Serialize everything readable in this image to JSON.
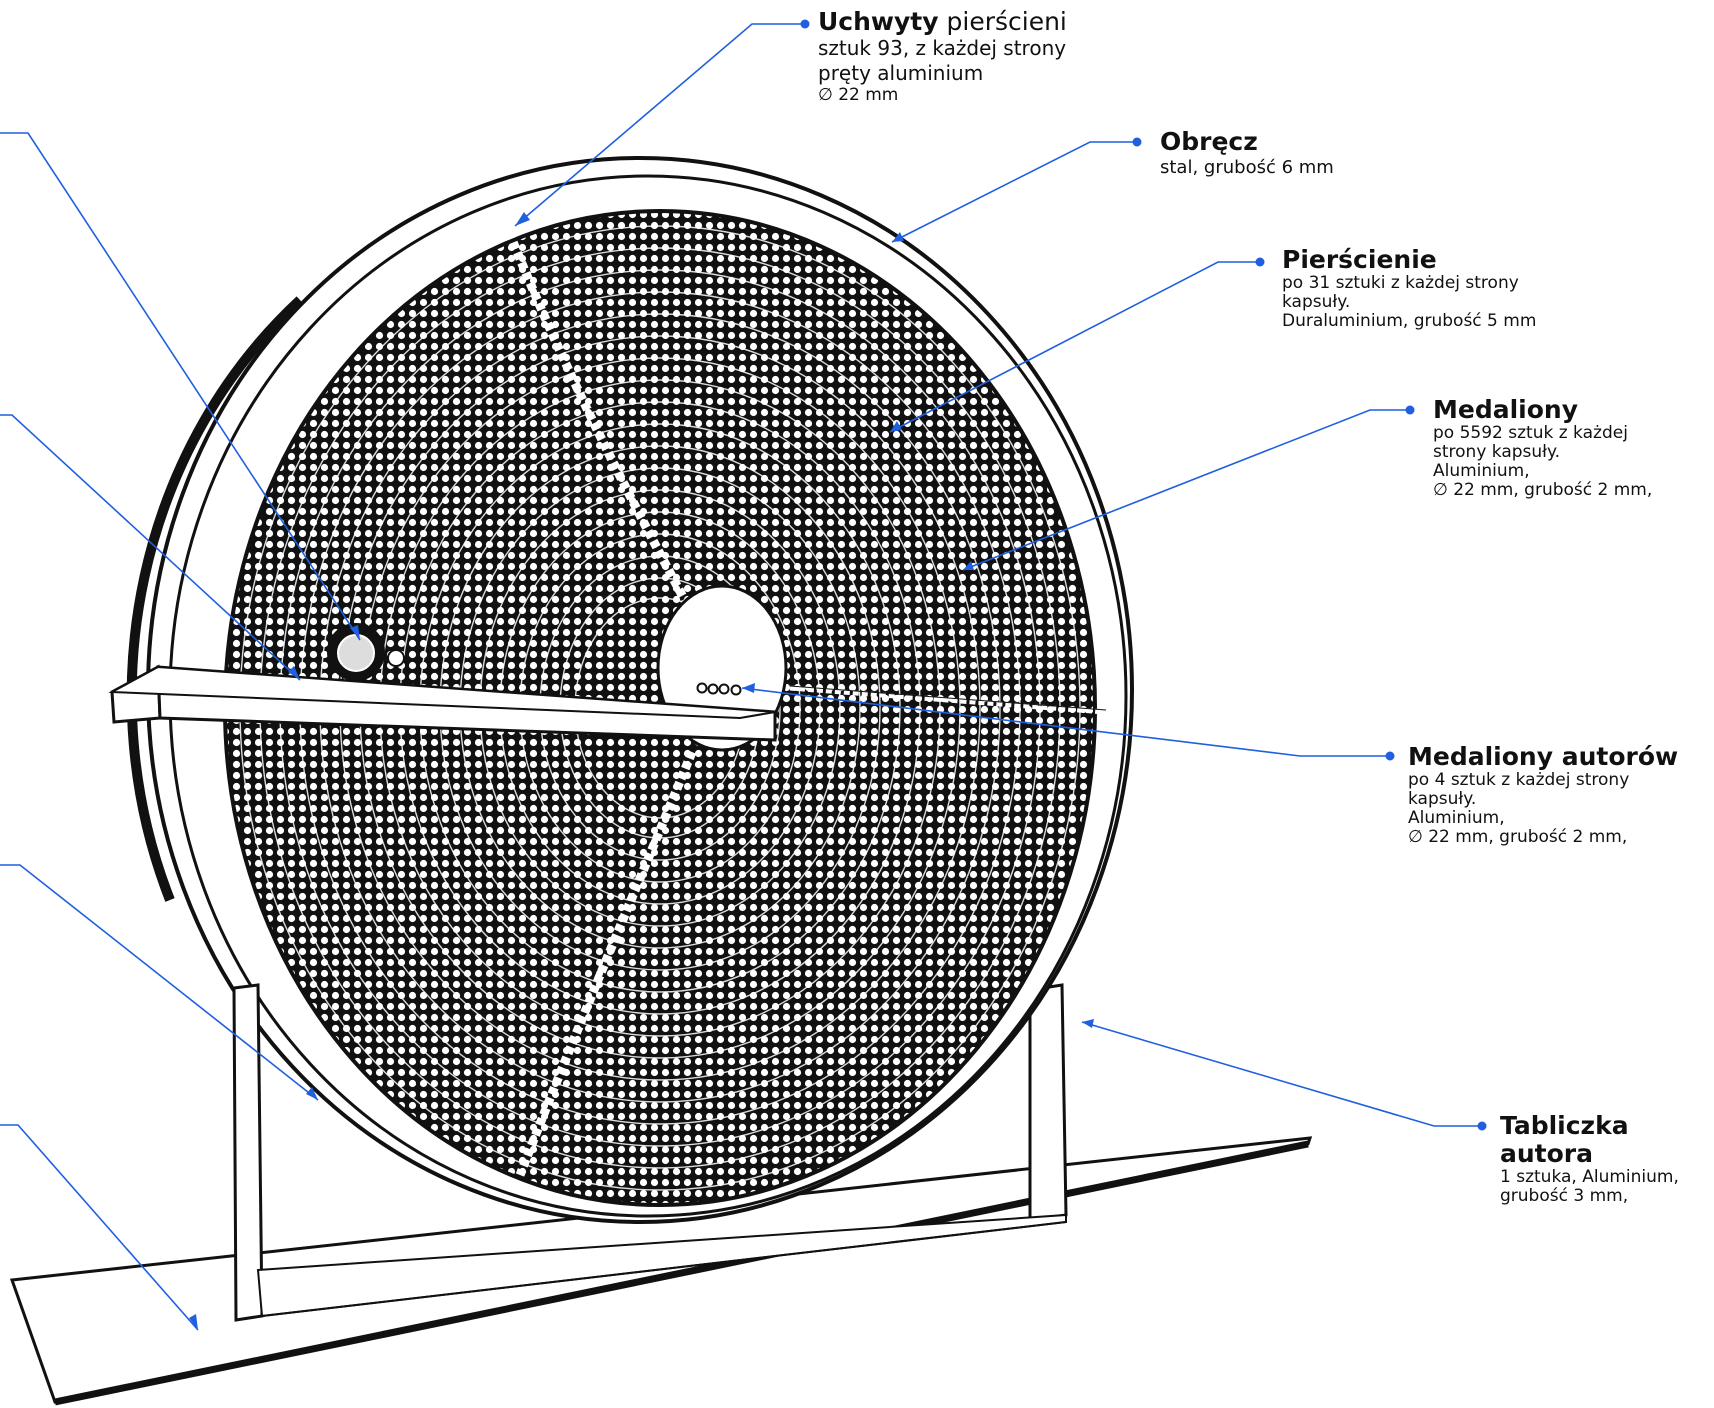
{
  "labels": {
    "uchwyty": {
      "title": "Uchwyty",
      "title_rest": " pierścieni",
      "line1": "sztuk 93, z każdej strony",
      "line2": "pręty aluminium",
      "line3": "∅ 22  mm"
    },
    "obrecz": {
      "title": "Obręcz",
      "line1": "stal, grubość 6 mm"
    },
    "pierscienie": {
      "title": "Pierścienie",
      "line1": "po 31 sztuki z każdej strony",
      "line2": "kapsuły.",
      "line3": "Duraluminium, grubość 5 mm"
    },
    "medaliony": {
      "title": "Medaliony",
      "line1": "po 5592 sztuk z każdej",
      "line2": "strony kapsuły.",
      "line3": "Aluminium,",
      "line4": "∅ 22   mm, grubość 2 mm,"
    },
    "medaliony_autorow": {
      "title": "Medaliony autorów",
      "line1": "po 4 sztuk z każdej strony",
      "line2": "kapsuły.",
      "line3": "Aluminium,",
      "line4": "∅ 22  mm, grubość 2 mm,"
    },
    "tabliczka": {
      "title_line1": "Tabliczka",
      "title_line2": "autora",
      "line1": "1 sztuka, Aluminium,",
      "line2": "grubość 3 mm,"
    }
  },
  "colors": {
    "leader": "#1f5fe0",
    "drawing": "#111111",
    "background": "#ffffff"
  }
}
